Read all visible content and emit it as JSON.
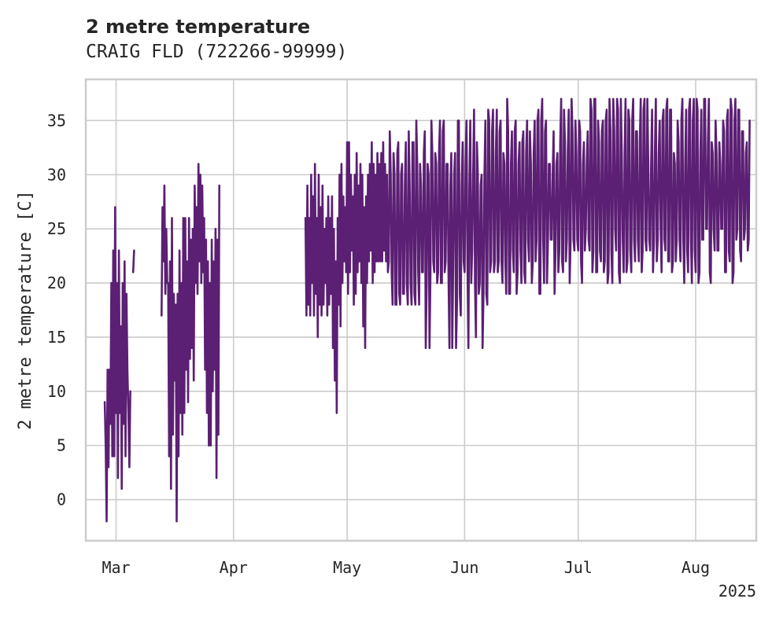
{
  "chart_data": {
    "type": "line",
    "title": "2 metre temperature",
    "subtitle": "CRAIG FLD (722266-99999)",
    "ylabel": "2 metre temperature [C]",
    "xlabel": "",
    "x_offset_label": "2025",
    "ylim": [
      -3.8,
      38.8
    ],
    "xlim": [
      "2025-02-21",
      "2025-08-17"
    ],
    "yticks": [
      0,
      5,
      10,
      15,
      20,
      25,
      30,
      35
    ],
    "ytick_labels": [
      "0",
      "5",
      "10",
      "15",
      "20",
      "25",
      "30",
      "35"
    ],
    "xticks": [
      "2025-03-01",
      "2025-04-01",
      "2025-05-01",
      "2025-06-01",
      "2025-07-01",
      "2025-08-01"
    ],
    "xtick_labels": [
      "Mar",
      "Apr",
      "May",
      "Jun",
      "Jul",
      "Aug"
    ],
    "grid": true,
    "legend": "none",
    "series": [
      {
        "color": "#5b1f73",
        "points": [
          [
            "2025-02-26T00",
            9
          ],
          [
            "2025-02-26T06",
            5
          ],
          [
            "2025-02-26T12",
            -2
          ],
          [
            "2025-02-26T18",
            12
          ],
          [
            "2025-02-27T00",
            3
          ],
          [
            "2025-02-27T06",
            12
          ],
          [
            "2025-02-27T12",
            7
          ],
          [
            "2025-02-27T18",
            20
          ],
          [
            "2025-02-28T00",
            4
          ],
          [
            "2025-02-28T06",
            23
          ],
          [
            "2025-02-28T12",
            4
          ],
          [
            "2025-02-28T18",
            27
          ],
          [
            "2025-03-01T00",
            8
          ],
          [
            "2025-03-01T06",
            20
          ],
          [
            "2025-03-01T12",
            2
          ],
          [
            "2025-03-01T18",
            23
          ],
          [
            "2025-03-02T00",
            8
          ],
          [
            "2025-03-02T06",
            16
          ],
          [
            "2025-03-02T12",
            1
          ],
          [
            "2025-03-02T18",
            20
          ],
          [
            "2025-03-03T00",
            7
          ],
          [
            "2025-03-03T06",
            22
          ],
          [
            "2025-03-03T12",
            4
          ],
          [
            "2025-03-03T18",
            19
          ],
          [
            "2025-03-04T00",
            12
          ],
          [
            "2025-03-04T06",
            8
          ],
          [
            "2025-03-04T12",
            3
          ],
          [
            "2025-03-04T18",
            10
          ],
          [
            "2025-03-05T00",
            null
          ],
          [
            "2025-03-05T12",
            21
          ],
          [
            "2025-03-05T18",
            23
          ],
          [
            "2025-03-06T00",
            null
          ],
          [
            "2025-03-13T00",
            17
          ],
          [
            "2025-03-13T06",
            27
          ],
          [
            "2025-03-13T12",
            22
          ],
          [
            "2025-03-13T18",
            29
          ],
          [
            "2025-03-14T00",
            19
          ],
          [
            "2025-03-14T06",
            25
          ],
          [
            "2025-03-14T12",
            20
          ],
          [
            "2025-03-14T18",
            20
          ],
          [
            "2025-03-15T00",
            4
          ],
          [
            "2025-03-15T06",
            22
          ],
          [
            "2025-03-15T12",
            1
          ],
          [
            "2025-03-15T18",
            26
          ],
          [
            "2025-03-16T00",
            6
          ],
          [
            "2025-03-16T06",
            19
          ],
          [
            "2025-03-16T12",
            11
          ],
          [
            "2025-03-16T18",
            18
          ],
          [
            "2025-03-17T00",
            -2
          ],
          [
            "2025-03-17T06",
            19
          ],
          [
            "2025-03-17T12",
            4
          ],
          [
            "2025-03-17T18",
            23
          ],
          [
            "2025-03-18T00",
            8
          ],
          [
            "2025-03-18T06",
            20
          ],
          [
            "2025-03-18T12",
            6
          ],
          [
            "2025-03-18T18",
            26
          ],
          [
            "2025-03-19T00",
            8
          ],
          [
            "2025-03-19T06",
            26
          ],
          [
            "2025-03-19T12",
            12
          ],
          [
            "2025-03-19T18",
            22
          ],
          [
            "2025-03-20T00",
            9
          ],
          [
            "2025-03-20T06",
            26
          ],
          [
            "2025-03-20T12",
            13
          ],
          [
            "2025-03-20T18",
            24
          ],
          [
            "2025-03-21T00",
            14
          ],
          [
            "2025-03-21T06",
            25
          ],
          [
            "2025-03-21T12",
            11
          ],
          [
            "2025-03-21T18",
            29
          ],
          [
            "2025-03-22T00",
            20
          ],
          [
            "2025-03-22T06",
            27
          ],
          [
            "2025-03-22T12",
            19
          ],
          [
            "2025-03-22T18",
            31
          ],
          [
            "2025-03-23T00",
            22
          ],
          [
            "2025-03-23T06",
            30
          ],
          [
            "2025-03-23T12",
            20
          ],
          [
            "2025-03-23T18",
            29
          ],
          [
            "2025-03-24T00",
            21
          ],
          [
            "2025-03-24T06",
            26
          ],
          [
            "2025-03-24T12",
            12
          ],
          [
            "2025-03-24T18",
            24
          ],
          [
            "2025-03-25T00",
            8
          ],
          [
            "2025-03-25T06",
            22
          ],
          [
            "2025-03-25T12",
            5
          ],
          [
            "2025-03-25T18",
            20
          ],
          [
            "2025-03-26T00",
            5
          ],
          [
            "2025-03-26T06",
            24
          ],
          [
            "2025-03-26T12",
            10
          ],
          [
            "2025-03-26T18",
            22
          ],
          [
            "2025-03-27T00",
            12
          ],
          [
            "2025-03-27T06",
            25
          ],
          [
            "2025-03-27T12",
            2
          ],
          [
            "2025-03-27T18",
            24
          ],
          [
            "2025-03-28T00",
            6
          ],
          [
            "2025-03-28T06",
            29
          ],
          [
            "2025-03-29T00",
            null
          ],
          [
            "2025-04-20T00",
            26
          ],
          [
            "2025-04-20T06",
            17
          ],
          [
            "2025-04-20T12",
            29
          ],
          [
            "2025-04-20T18",
            18
          ],
          [
            "2025-04-21T00",
            26
          ],
          [
            "2025-04-21T06",
            17
          ],
          [
            "2025-04-21T12",
            30
          ],
          [
            "2025-04-21T18",
            20
          ],
          [
            "2025-04-22T00",
            28
          ],
          [
            "2025-04-22T06",
            17
          ],
          [
            "2025-04-22T12",
            31
          ],
          [
            "2025-04-22T18",
            19
          ],
          [
            "2025-04-23T00",
            26
          ],
          [
            "2025-04-23T06",
            15
          ],
          [
            "2025-04-23T12",
            30
          ],
          [
            "2025-04-23T18",
            18
          ],
          [
            "2025-04-24T00",
            27
          ],
          [
            "2025-04-24T06",
            17
          ],
          [
            "2025-04-24T12",
            29
          ],
          [
            "2025-04-24T18",
            18
          ],
          [
            "2025-04-25T00",
            25
          ],
          [
            "2025-04-25T06",
            20
          ],
          [
            "2025-04-25T12",
            26
          ],
          [
            "2025-04-25T18",
            17
          ],
          [
            "2025-04-26T00",
            28
          ],
          [
            "2025-04-26T06",
            18
          ],
          [
            "2025-04-26T12",
            26
          ],
          [
            "2025-04-26T18",
            19
          ],
          [
            "2025-04-27T00",
            28
          ],
          [
            "2025-04-27T06",
            14
          ],
          [
            "2025-04-27T12",
            25
          ],
          [
            "2025-04-27T18",
            11
          ],
          [
            "2025-04-28T00",
            22
          ],
          [
            "2025-04-28T06",
            8
          ],
          [
            "2025-04-28T12",
            26
          ],
          [
            "2025-04-28T18",
            18
          ],
          [
            "2025-04-29T00",
            30
          ],
          [
            "2025-04-29T06",
            16
          ],
          [
            "2025-04-29T12",
            31
          ],
          [
            "2025-04-29T18",
            20
          ],
          [
            "2025-04-30T00",
            28
          ],
          [
            "2025-04-30T06",
            22
          ],
          [
            "2025-04-30T12",
            27
          ],
          [
            "2025-04-30T18",
            21
          ],
          [
            "2025-05-01T00",
            33
          ],
          [
            "2025-05-01T06",
            19
          ],
          [
            "2025-05-01T12",
            33
          ],
          [
            "2025-05-01T18",
            21
          ],
          [
            "2025-05-02T00",
            30
          ],
          [
            "2025-05-02T06",
            23
          ],
          [
            "2025-05-02T12",
            28
          ],
          [
            "2025-05-02T18",
            18
          ],
          [
            "2025-05-03T00",
            30
          ],
          [
            "2025-05-03T06",
            19
          ],
          [
            "2025-05-03T12",
            32
          ],
          [
            "2025-05-03T18",
            21
          ],
          [
            "2025-05-04T00",
            29
          ],
          [
            "2025-05-04T06",
            22
          ],
          [
            "2025-05-04T12",
            31
          ],
          [
            "2025-05-04T18",
            20
          ],
          [
            "2025-05-05T00",
            30
          ],
          [
            "2025-05-05T06",
            16
          ],
          [
            "2025-05-05T12",
            27
          ],
          [
            "2025-05-05T18",
            14
          ],
          [
            "2025-05-06T00",
            28
          ],
          [
            "2025-05-06T06",
            20
          ],
          [
            "2025-05-06T12",
            30
          ],
          [
            "2025-05-06T18",
            22
          ],
          [
            "2025-05-07T00",
            31
          ],
          [
            "2025-05-07T06",
            23
          ],
          [
            "2025-05-07T12",
            33
          ],
          [
            "2025-05-07T18",
            20
          ],
          [
            "2025-05-08T00",
            31
          ],
          [
            "2025-05-08T06",
            21
          ],
          [
            "2025-05-08T12",
            30
          ],
          [
            "2025-05-08T18",
            22
          ],
          [
            "2025-05-09T00",
            32
          ],
          [
            "2025-05-09T06",
            22
          ],
          [
            "2025-05-09T12",
            31
          ],
          [
            "2025-05-09T18",
            22
          ],
          [
            "2025-05-10T00",
            32
          ],
          [
            "2025-05-10T06",
            22
          ],
          [
            "2025-05-10T12",
            33
          ],
          [
            "2025-05-10T18",
            23
          ],
          [
            "2025-05-11T00",
            31
          ],
          [
            "2025-05-11T06",
            22
          ],
          [
            "2025-05-11T12",
            30
          ],
          [
            "2025-05-11T18",
            21
          ]
        ]
      }
    ]
  }
}
